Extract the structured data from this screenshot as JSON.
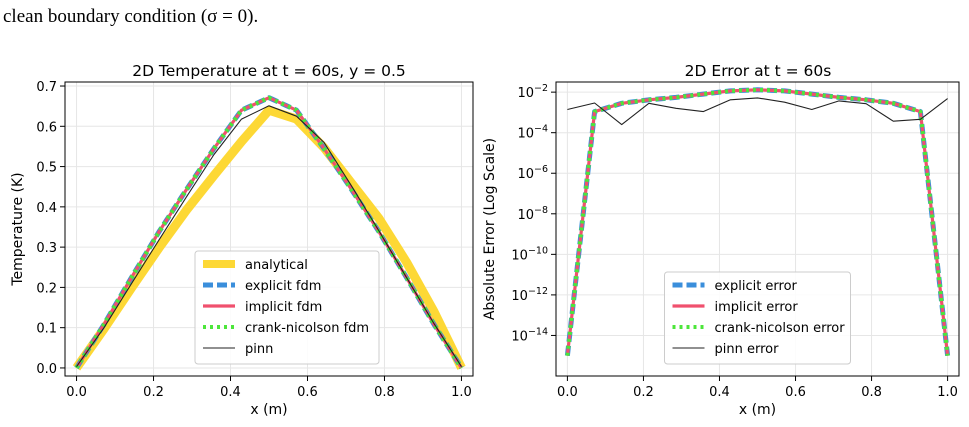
{
  "caption": "clean boundary condition (σ = 0).",
  "chart_data": [
    {
      "type": "line",
      "title": "2D Temperature at t = 60s, y = 0.5",
      "xlabel": "x (m)",
      "ylabel": "Temperature (K)",
      "xlim": [
        -0.03,
        1.03
      ],
      "ylim": [
        -0.02,
        0.71
      ],
      "xticks": [
        "0.0",
        "0.2",
        "0.4",
        "0.6",
        "0.8",
        "1.0"
      ],
      "yticks": [
        "0.0",
        "0.1",
        "0.2",
        "0.3",
        "0.4",
        "0.5",
        "0.6",
        "0.7"
      ],
      "grid": true,
      "legend_position": "lower-center",
      "x": [
        0,
        0.0714,
        0.1429,
        0.2143,
        0.2857,
        0.3571,
        0.4286,
        0.5,
        0.5714,
        0.6429,
        0.7143,
        0.7857,
        0.8571,
        0.9286,
        1.0
      ],
      "series": [
        {
          "name": "analytical",
          "color": "#FDD835",
          "style": "solid-thick",
          "values": [
            0,
            0.097,
            0.199,
            0.298,
            0.392,
            0.478,
            0.562,
            0.64,
            0.618,
            0.547,
            0.459,
            0.371,
            0.263,
            0.14,
            0
          ]
        },
        {
          "name": "explicit fdm",
          "color": "#3A8EDB",
          "style": "dashed",
          "values": [
            0,
            0.108,
            0.225,
            0.338,
            0.443,
            0.545,
            0.64,
            0.671,
            0.64,
            0.545,
            0.443,
            0.338,
            0.225,
            0.108,
            0
          ]
        },
        {
          "name": "implicit fdm",
          "color": "#F0506E",
          "style": "solid",
          "values": [
            0,
            0.108,
            0.225,
            0.338,
            0.443,
            0.545,
            0.64,
            0.671,
            0.64,
            0.545,
            0.443,
            0.338,
            0.225,
            0.108,
            0
          ]
        },
        {
          "name": "crank-nicolson fdm",
          "color": "#4CE63A",
          "style": "dotted",
          "values": [
            0,
            0.108,
            0.225,
            0.338,
            0.443,
            0.545,
            0.64,
            0.671,
            0.64,
            0.545,
            0.443,
            0.338,
            0.225,
            0.108,
            0
          ]
        },
        {
          "name": "pinn",
          "color": "#222222",
          "style": "thin",
          "values": [
            0.003,
            0.1,
            0.21,
            0.318,
            0.425,
            0.53,
            0.618,
            0.651,
            0.625,
            0.56,
            0.452,
            0.34,
            0.225,
            0.11,
            0.003
          ]
        }
      ]
    },
    {
      "type": "line",
      "title": "2D Error at t = 60s",
      "xlabel": "x (m)",
      "ylabel": "Absolute Error (Log Scale)",
      "yscale": "log",
      "xlim": [
        -0.03,
        1.03
      ],
      "ylim_log10": [
        -16,
        -1.5
      ],
      "xticks": [
        "0.0",
        "0.2",
        "0.4",
        "0.6",
        "0.8",
        "1.0"
      ],
      "ytick_exponents": [
        "-14",
        "-12",
        "-10",
        "-8",
        "-6",
        "-4",
        "-2"
      ],
      "grid": true,
      "legend_position": "lower-center",
      "x": [
        0,
        0.0714,
        0.1429,
        0.2143,
        0.2857,
        0.3571,
        0.4286,
        0.5,
        0.5714,
        0.6429,
        0.7143,
        0.7857,
        0.8571,
        0.9286,
        1.0
      ],
      "series": [
        {
          "name": "explicit error",
          "color": "#3A8EDB",
          "style": "dashed",
          "values": [
            1e-15,
            0.0011,
            0.0028,
            0.0042,
            0.0055,
            0.008,
            0.0115,
            0.013,
            0.0115,
            0.008,
            0.0055,
            0.0042,
            0.0028,
            0.0011,
            1e-15
          ]
        },
        {
          "name": "implicit error",
          "color": "#F0506E",
          "style": "solid",
          "values": [
            1e-15,
            0.0011,
            0.0028,
            0.0042,
            0.0055,
            0.008,
            0.0115,
            0.013,
            0.0115,
            0.008,
            0.0055,
            0.0042,
            0.0028,
            0.0011,
            1e-15
          ]
        },
        {
          "name": "crank-nicolson error",
          "color": "#4CE63A",
          "style": "dotted",
          "values": [
            1e-15,
            0.0011,
            0.0028,
            0.0042,
            0.0055,
            0.008,
            0.0115,
            0.013,
            0.0115,
            0.008,
            0.0055,
            0.0042,
            0.0028,
            0.0011,
            1e-15
          ]
        },
        {
          "name": "pinn error",
          "color": "#222222",
          "style": "thin",
          "values": [
            0.0014,
            0.0029,
            0.00025,
            0.0028,
            0.0016,
            0.0011,
            0.0042,
            0.0052,
            0.0032,
            0.0014,
            0.0037,
            0.0027,
            0.00037,
            0.00046,
            0.0048
          ]
        }
      ]
    }
  ]
}
